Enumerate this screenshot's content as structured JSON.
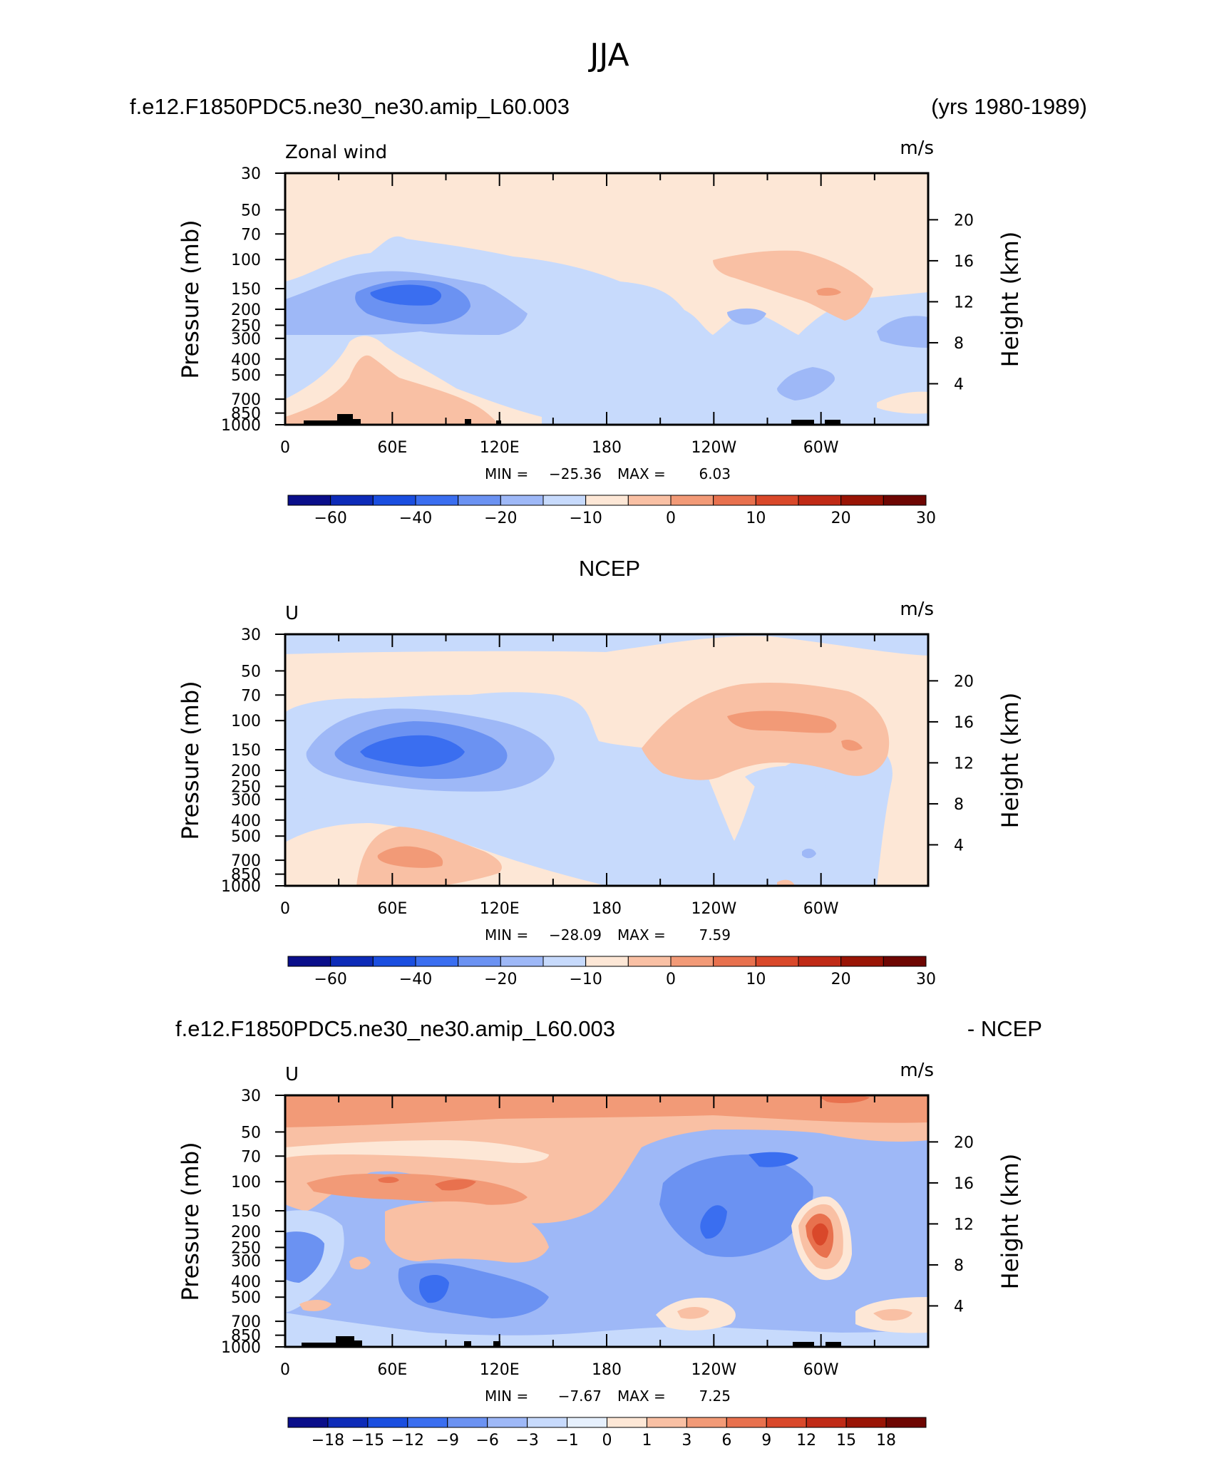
{
  "figure": {
    "title": "JJA",
    "min_label": "MIN =",
    "max_label": "MAX ="
  },
  "chart_data": [
    {
      "type": "heatmap",
      "title_left": "f.e12.F1850PDC5.ne30_ne30.amip_L60.003",
      "title_right": "(yrs 1980-1989)",
      "variable": "Zonal wind",
      "units": "m/s",
      "ylabel": "Pressure (mb)",
      "ylabel_right": "Height (km)",
      "x_ticks": [
        "0",
        "60E",
        "120E",
        "180",
        "120W",
        "60W"
      ],
      "y_ticks": [
        "30",
        "50",
        "70",
        "100",
        "150",
        "200",
        "250",
        "300",
        "400",
        "500",
        "700",
        "850",
        "1000"
      ],
      "height_ticks": [
        "4",
        "8",
        "12",
        "16",
        "20"
      ],
      "min": "−25.36",
      "max": "6.03",
      "colorbar_labels": [
        "−60",
        "−40",
        "−20",
        "−10",
        "0",
        "10",
        "20",
        "30"
      ],
      "colorbar_colors": [
        "#0a0e8a",
        "#0d2bb8",
        "#1a4ee0",
        "#3a6ef0",
        "#6b92f2",
        "#9eb8f7",
        "#c7dafc",
        "#fde7d6",
        "#f9c0a4",
        "#f29a77",
        "#e8714e",
        "#d9482a",
        "#c02a16",
        "#991405",
        "#6e0602"
      ]
    },
    {
      "type": "heatmap",
      "title_center": "NCEP",
      "variable": "U",
      "units": "m/s",
      "ylabel": "Pressure (mb)",
      "ylabel_right": "Height (km)",
      "x_ticks": [
        "0",
        "60E",
        "120E",
        "180",
        "120W",
        "60W"
      ],
      "y_ticks": [
        "30",
        "50",
        "70",
        "100",
        "150",
        "200",
        "250",
        "300",
        "400",
        "500",
        "700",
        "850",
        "1000"
      ],
      "height_ticks": [
        "4",
        "8",
        "12",
        "16",
        "20"
      ],
      "min": "−28.09",
      "max": "7.59",
      "colorbar_labels": [
        "−60",
        "−40",
        "−20",
        "−10",
        "0",
        "10",
        "20",
        "30"
      ],
      "colorbar_colors": [
        "#0a0e8a",
        "#0d2bb8",
        "#1a4ee0",
        "#3a6ef0",
        "#6b92f2",
        "#9eb8f7",
        "#c7dafc",
        "#fde7d6",
        "#f9c0a4",
        "#f29a77",
        "#e8714e",
        "#d9482a",
        "#c02a16",
        "#991405",
        "#6e0602"
      ]
    },
    {
      "type": "heatmap",
      "title_left": "f.e12.F1850PDC5.ne30_ne30.amip_L60.003",
      "title_right": "- NCEP",
      "variable": "U",
      "units": "m/s",
      "ylabel": "Pressure (mb)",
      "ylabel_right": "Height (km)",
      "x_ticks": [
        "0",
        "60E",
        "120E",
        "180",
        "120W",
        "60W"
      ],
      "y_ticks": [
        "30",
        "50",
        "70",
        "100",
        "150",
        "200",
        "250",
        "300",
        "400",
        "500",
        "700",
        "850",
        "1000"
      ],
      "height_ticks": [
        "4",
        "8",
        "12",
        "16",
        "20"
      ],
      "min": "−7.67",
      "max": "7.25",
      "colorbar_labels": [
        "−18",
        "−15",
        "−12",
        "−9",
        "−6",
        "−3",
        "−1",
        "0",
        "1",
        "3",
        "6",
        "9",
        "12",
        "15",
        "18"
      ],
      "colorbar_colors": [
        "#0a0e8a",
        "#0d2bb8",
        "#1a4ee0",
        "#3a6ef0",
        "#6b92f2",
        "#9eb8f7",
        "#c7dafc",
        "#e6f0fd",
        "#fde7d6",
        "#f9c0a4",
        "#f29a77",
        "#e8714e",
        "#d9482a",
        "#c02a16",
        "#991405",
        "#6e0602"
      ]
    }
  ]
}
